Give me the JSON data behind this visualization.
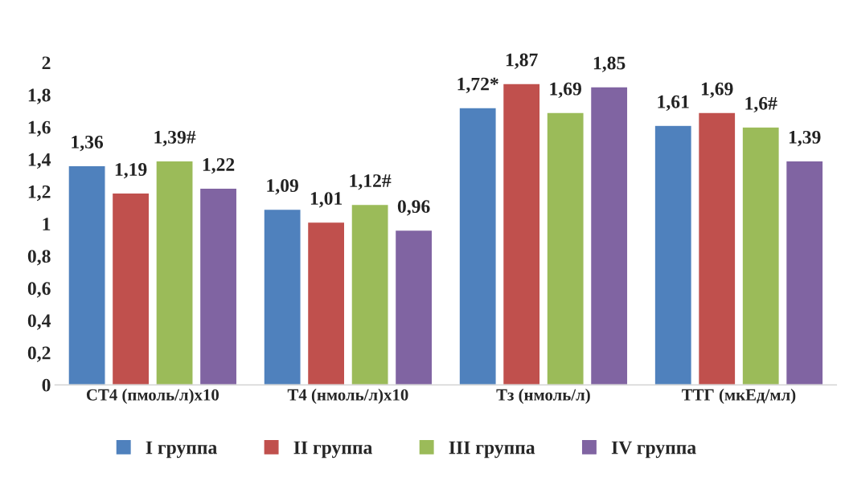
{
  "chart_data": {
    "type": "bar",
    "categories": [
      "СТ4 (пмоль/л)х10",
      "Т4 (нмоль/л)х10",
      "Тз (нмоль/л)",
      "ТТГ (мкЕд/мл)"
    ],
    "series": [
      {
        "name": "I группа",
        "color": "#4f81bd",
        "values": [
          1.36,
          1.09,
          1.72,
          1.61
        ],
        "value_labels": [
          "1,36",
          "1,09",
          "1,72*",
          "1,61"
        ]
      },
      {
        "name": "II группа",
        "color": "#c0504d",
        "values": [
          1.19,
          1.01,
          1.87,
          1.69
        ],
        "value_labels": [
          "1,19",
          "1,01",
          "1,87",
          "1,69"
        ]
      },
      {
        "name": "III группа",
        "color": "#9bbb59",
        "values": [
          1.39,
          1.12,
          1.69,
          1.6
        ],
        "value_labels": [
          "1,39#",
          "1,12#",
          "1,69",
          "1,6#"
        ]
      },
      {
        "name": "IV группа",
        "color": "#8064a2",
        "values": [
          1.22,
          0.96,
          1.85,
          1.39
        ],
        "value_labels": [
          "1,22",
          "0,96",
          "1,85",
          "1,39"
        ]
      }
    ],
    "ylim": [
      0,
      2
    ],
    "yticks": [
      0,
      {
        "value": 0.2,
        "label": "0,2"
      },
      {
        "value": 0.4,
        "label": "0,4"
      },
      {
        "value": 0.6,
        "label": "0,6"
      },
      {
        "value": 0.8,
        "label": "0,8"
      },
      1,
      {
        "value": 1.2,
        "label": "1,2"
      },
      {
        "value": 1.4,
        "label": "1,4"
      },
      {
        "value": 1.6,
        "label": "1,6"
      },
      {
        "value": 1.8,
        "label": "1,8"
      },
      2
    ],
    "grid": false,
    "legend": "bottom"
  }
}
